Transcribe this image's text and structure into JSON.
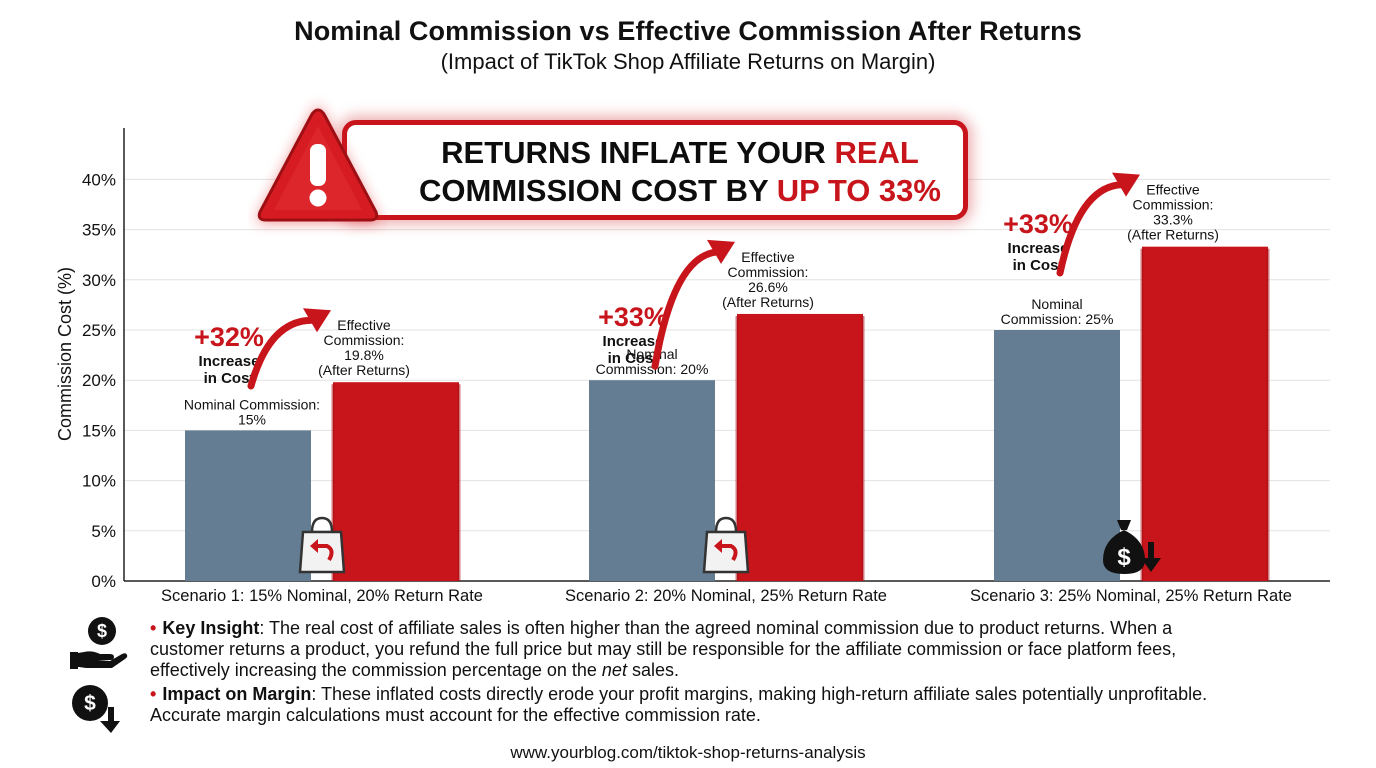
{
  "page": {
    "title": "Nominal Commission vs Effective Commission After Returns",
    "subtitle": "(Impact of TikTok Shop Affiliate Returns on Margin)",
    "callout": {
      "line1_prefix": "RETURNS INFLATE YOUR ",
      "line1_highlight": "REAL",
      "line2_prefix": "COMMISSION COST BY ",
      "line2_highlight": "UP TO 33%",
      "warning_icon": "warning-triangle-icon"
    },
    "footer": "www.yourblog.com/tiktok-shop-returns-analysis"
  },
  "chart_data": {
    "type": "bar",
    "ylabel": "Commission Cost (%)",
    "ylim": [
      0,
      45
    ],
    "yticks": [
      "0%",
      "5%",
      "10%",
      "15%",
      "20%",
      "25%",
      "30%",
      "35%",
      "40%"
    ],
    "grid": true,
    "categories": [
      "Scenario 1: 15% Nominal, 20% Return Rate",
      "Scenario 2: 20% Nominal, 25% Return Rate",
      "Scenario 3: 25% Nominal, 25% Return Rate"
    ],
    "series": [
      {
        "values": [
          15,
          20,
          25
        ],
        "color": "#647d92"
      },
      {
        "values": [
          19.8,
          26.6,
          33.3
        ],
        "color": "#c8151b"
      }
    ],
    "nominal_labels": [
      [
        "Nominal Commission:",
        "15%"
      ],
      [
        "Nominal",
        "Commission: 20%"
      ],
      [
        "Nominal",
        "Commission: 25%"
      ]
    ],
    "effective_labels": [
      [
        "Effective",
        "Commission:",
        "19.8%",
        "(After Returns)"
      ],
      [
        "Effective",
        "Commission:",
        "26.6%",
        "(After Returns)"
      ],
      [
        "Effective",
        "Commission:",
        "33.3%",
        "(After Returns)"
      ]
    ],
    "increase_labels": [
      {
        "pct": "+32%",
        "line1": "Increase",
        "line2": "in Cost"
      },
      {
        "pct": "+33%",
        "line1": "Increase",
        "line2": "in Cost"
      },
      {
        "pct": "+33%",
        "line1": "Increase",
        "line2": "in Cost"
      }
    ],
    "bar_icons": [
      "shopping-bag-return-icon",
      "shopping-bag-return-icon",
      "money-bag-down-icon"
    ]
  },
  "bullets": [
    {
      "icon": "dollar-hand-icon",
      "label": "Key Insight",
      "text_lines": [
        ": The real cost of affiliate sales is often higher than the agreed nominal commission due to product returns. When a",
        "customer returns a product, you refund the full price but may still be responsible for the affiliate commission or face platform fees,"
      ],
      "last_line_prefix": "effectively increasing the commission percentage on the ",
      "last_line_emphasis": "net",
      "last_line_suffix": " sales."
    },
    {
      "icon": "dollar-down-icon",
      "label": "Impact on Margin",
      "text_lines": [
        ": These inflated costs directly erode your profit margins, making high-return affiliate sales potentially unprofitable.",
        "Accurate margin calculations must account for the effective commission rate."
      ]
    }
  ]
}
